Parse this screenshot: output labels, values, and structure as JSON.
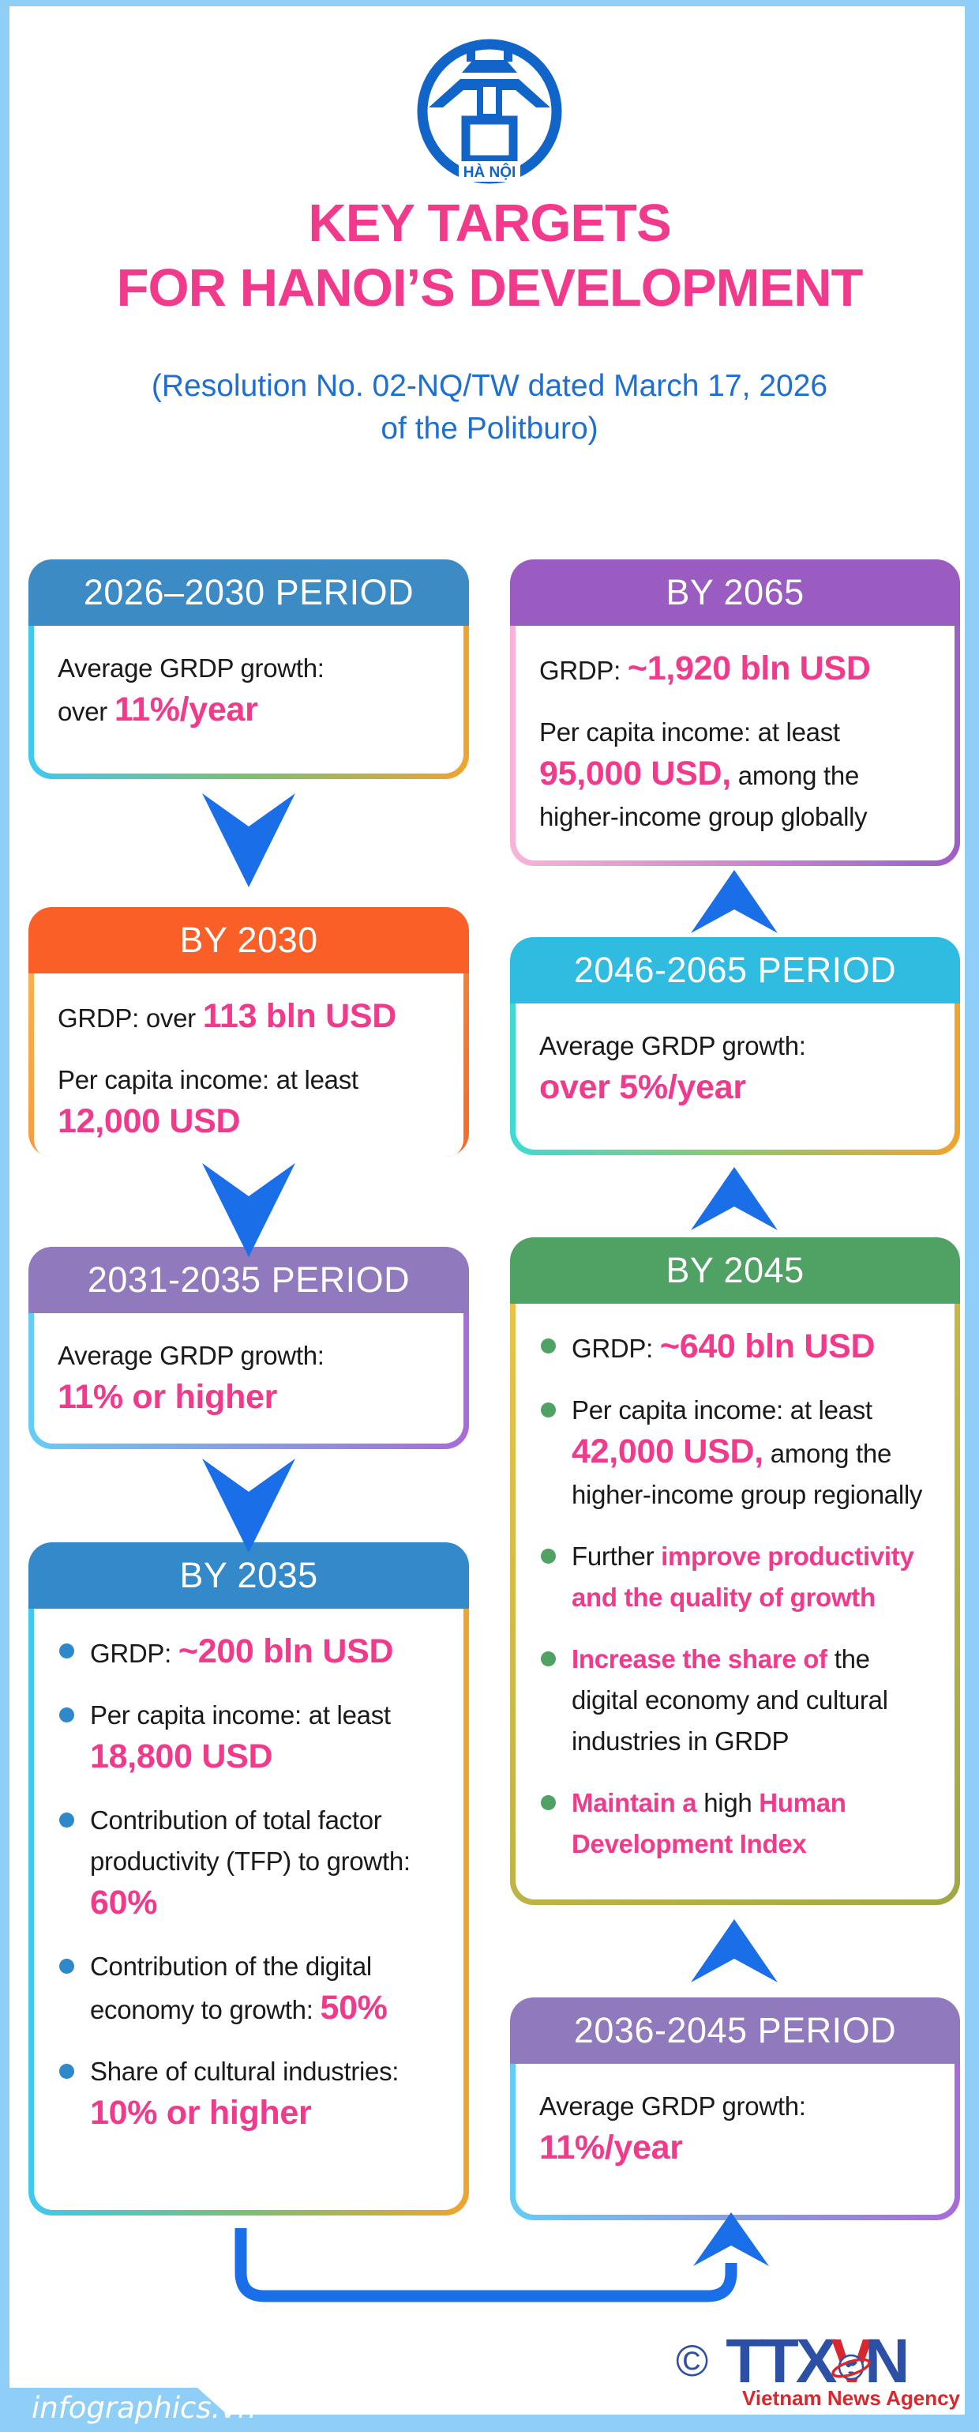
{
  "colors": {
    "bg": "#8FCEF7",
    "pink": "#F13A8C",
    "ink": "#1A1A1A",
    "subtitle-blue": "#1E6FD2",
    "arrow-blue": "#1A6FE8",
    "emblem-blue": "#1265C8",
    "navy": "#2B50A5",
    "red": "#D8282D",
    "white": "#FFFFFF"
  },
  "logo": {
    "icon": "hanoi-khue-van-cac-emblem",
    "caption": "HÀ NỘI"
  },
  "title": {
    "line1": "KEY TARGETS",
    "line2": "FOR HANOI’S DEVELOPMENT"
  },
  "subtitle": {
    "line1": "(Resolution No. 02-NQ/TW dated March 17, 2026",
    "line2": "of the Politburo)"
  },
  "boxes": [
    {
      "header": "2026–2030 PERIOD",
      "header_color": "#3D8BC4",
      "border_gradient": "linear-gradient(90deg,#3FC8F0,#7CBF72,#F0A42E)",
      "content": [
        {
          "segments": [
            {
              "style": "dark",
              "text": "Average GRDP growth:"
            }
          ]
        },
        {
          "segments": [
            {
              "style": "dark",
              "text": "over "
            },
            {
              "style": "val",
              "text": "11%/year"
            }
          ]
        }
      ]
    },
    {
      "header": "BY 2030",
      "header_color": "#F95F27",
      "border_gradient": "linear-gradient(135deg,#F9B04A,#F8682A)",
      "content": [
        {
          "segments": [
            {
              "style": "dark",
              "text": "GRDP: over "
            },
            {
              "style": "val",
              "text": "113 bln USD"
            }
          ]
        },
        {
          "gap": true,
          "segments": [
            {
              "style": "dark",
              "text": "Per capita income: at least"
            }
          ]
        },
        {
          "segments": [
            {
              "style": "val",
              "text": "12,000 USD"
            }
          ]
        }
      ]
    },
    {
      "header": "2031-2035 PERIOD",
      "header_color": "#9179BE",
      "border_gradient": "linear-gradient(90deg,#66CCF5,#A86BD8)",
      "content": [
        {
          "segments": [
            {
              "style": "dark",
              "text": "Average GRDP growth:"
            }
          ]
        },
        {
          "segments": [
            {
              "style": "val",
              "text": "11% or higher"
            }
          ]
        }
      ]
    },
    {
      "header": "BY 2035",
      "header_color": "#3389C9",
      "border_gradient": "linear-gradient(90deg,#3FC8F0,#7CBF72,#F0A42E)",
      "dot": "#2F88C9",
      "content": [
        {
          "bullet": true,
          "segments": [
            {
              "style": "dark",
              "text": "GRDP: "
            },
            {
              "style": "val",
              "text": "~200 bln USD"
            }
          ]
        },
        {
          "bullet": true,
          "gap": true,
          "segments": [
            {
              "style": "dark",
              "text": "Per capita income: at least"
            }
          ]
        },
        {
          "cont": true,
          "segments": [
            {
              "style": "val",
              "text": "18,800 USD"
            }
          ]
        },
        {
          "bullet": true,
          "gap": true,
          "segments": [
            {
              "style": "dark",
              "text": "Contribution of total factor"
            }
          ]
        },
        {
          "cont": true,
          "segments": [
            {
              "style": "dark",
              "text": "productivity (TFP) to growth:"
            }
          ]
        },
        {
          "cont": true,
          "segments": [
            {
              "style": "val",
              "text": "60%"
            }
          ]
        },
        {
          "bullet": true,
          "gap": true,
          "segments": [
            {
              "style": "dark",
              "text": "Contribution of the digital"
            }
          ]
        },
        {
          "cont": true,
          "segments": [
            {
              "style": "dark",
              "text": "economy to growth: "
            },
            {
              "style": "val",
              "text": "50%"
            }
          ]
        },
        {
          "bullet": true,
          "gap": true,
          "segments": [
            {
              "style": "dark",
              "text": "Share of cultural industries:"
            }
          ]
        },
        {
          "cont": true,
          "segments": [
            {
              "style": "val",
              "text": "10% or higher"
            }
          ]
        }
      ]
    },
    {
      "header": "BY 2065",
      "header_color": "#9A5CC0",
      "border_gradient": "linear-gradient(90deg,#F8B4D8,#9C5FC4)",
      "content": [
        {
          "segments": [
            {
              "style": "dark",
              "text": "GRDP: "
            },
            {
              "style": "val",
              "text": "~1,920 bln USD"
            }
          ]
        },
        {
          "gap": true,
          "segments": [
            {
              "style": "dark",
              "text": "Per capita income: at least"
            }
          ]
        },
        {
          "segments": [
            {
              "style": "val",
              "text": "95,000 USD,"
            },
            {
              "style": "dark",
              "text": " among the"
            }
          ]
        },
        {
          "segments": [
            {
              "style": "dark",
              "text": "higher-income group globally"
            }
          ]
        }
      ]
    },
    {
      "header": "2046-2065 PERIOD",
      "header_color": "#30BCE1",
      "border_gradient": "linear-gradient(90deg,#3EDBD4,#8FC86A,#F0A42E)",
      "content": [
        {
          "segments": [
            {
              "style": "dark",
              "text": "Average GRDP growth:"
            }
          ]
        },
        {
          "segments": [
            {
              "style": "val",
              "text": "over 5%/year"
            }
          ]
        }
      ]
    },
    {
      "header": "BY 2045",
      "header_color": "#4FA263",
      "border_gradient": "linear-gradient(135deg,#E8C348,#9FA845)",
      "dot": "#4FA263",
      "content": [
        {
          "bullet": true,
          "segments": [
            {
              "style": "dark",
              "text": "GRDP: "
            },
            {
              "style": "val",
              "text": "~640 bln USD"
            }
          ]
        },
        {
          "bullet": true,
          "gap": true,
          "segments": [
            {
              "style": "dark",
              "text": "Per capita income: at least"
            }
          ]
        },
        {
          "cont": true,
          "segments": [
            {
              "style": "val",
              "text": "42,000 USD,"
            },
            {
              "style": "dark",
              "text": " among the"
            }
          ]
        },
        {
          "cont": true,
          "segments": [
            {
              "style": "dark",
              "text": "higher-income group regionally"
            }
          ]
        },
        {
          "bullet": true,
          "gap": true,
          "segments": [
            {
              "style": "dark",
              "text": "Further "
            },
            {
              "style": "pink",
              "text": "improve productivity"
            }
          ]
        },
        {
          "cont": true,
          "segments": [
            {
              "style": "pink",
              "text": "and the quality of growth"
            }
          ]
        },
        {
          "bullet": true,
          "gap": true,
          "segments": [
            {
              "style": "pink",
              "text": "Increase the share of "
            },
            {
              "style": "dark",
              "text": "the"
            }
          ]
        },
        {
          "cont": true,
          "segments": [
            {
              "style": "dark",
              "text": "digital economy and cultural"
            }
          ]
        },
        {
          "cont": true,
          "segments": [
            {
              "style": "dark",
              "text": "industries in GRDP"
            }
          ]
        },
        {
          "bullet": true,
          "gap": true,
          "segments": [
            {
              "style": "pink",
              "text": "Maintain a "
            },
            {
              "style": "dark",
              "text": "high "
            },
            {
              "style": "pink",
              "text": "Human"
            }
          ]
        },
        {
          "cont": true,
          "segments": [
            {
              "style": "pink",
              "text": "Development Index"
            }
          ]
        }
      ]
    },
    {
      "header": "2036-2045 PERIOD",
      "header_color": "#9179BE",
      "border_gradient": "linear-gradient(90deg,#66CCF5,#A86BD8)",
      "content": [
        {
          "segments": [
            {
              "style": "dark",
              "text": "Average GRDP growth:"
            }
          ]
        },
        {
          "segments": [
            {
              "style": "val",
              "text": "11%/year"
            }
          ]
        }
      ]
    }
  ],
  "footer": {
    "site": "infographics.vn",
    "copyright": "©",
    "agency_t": "TTX",
    "agency_v": "V",
    "agency_n": "N",
    "agency_name": "Vietnam News Agency"
  }
}
